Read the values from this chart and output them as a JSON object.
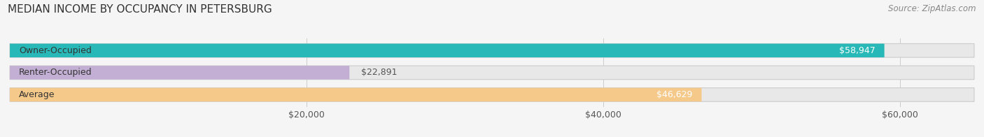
{
  "title": "MEDIAN INCOME BY OCCUPANCY IN PETERSBURG",
  "source": "Source: ZipAtlas.com",
  "categories": [
    "Owner-Occupied",
    "Renter-Occupied",
    "Average"
  ],
  "values": [
    58947,
    22891,
    46629
  ],
  "bar_colors": [
    "#29b8b8",
    "#c3afd4",
    "#f5c98a"
  ],
  "bar_labels": [
    "$58,947",
    "$22,891",
    "$46,629"
  ],
  "label_colors": [
    "#ffffff",
    "#555555",
    "#ffffff"
  ],
  "xlim": [
    0,
    65000
  ],
  "xticks": [
    20000,
    40000,
    60000
  ],
  "xticklabels": [
    "$20,000",
    "$40,000",
    "$60,000"
  ],
  "bg_color": "#f5f5f5",
  "bar_bg_color": "#e8e8e8",
  "title_fontsize": 11,
  "source_fontsize": 8.5,
  "label_fontsize": 9,
  "tick_fontsize": 9,
  "cat_fontsize": 9
}
